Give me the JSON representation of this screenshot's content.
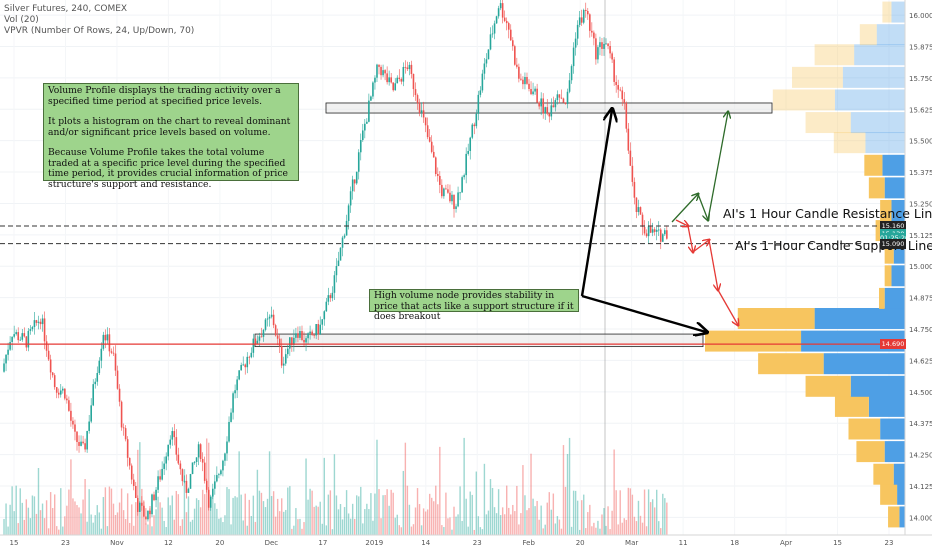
{
  "header": {
    "title": "Silver Futures, 240, COMEX",
    "indicator_vol": "Vol (20)",
    "indicator_vpvr": "VPVR (Number Of Rows, 24, Up/Down, 70)"
  },
  "annotations": {
    "volume_profile_note": [
      "Volume Profile displays the trading activity over a specified time period at specified price levels.",
      "It plots a histogram on the chart to reveal dominant and/or significant price levels based on volume.",
      "Because Volume Profile takes the total volume traded at a specific price level during the specified time period, it provides crucial information of price structure's support and resistance."
    ],
    "high_volume_note": "High volume node provides stability in price that acts like a support structure if it does breakout",
    "resistance_label": "AI's 1 Hour Candle Resistance Line",
    "support_label": "AI's 1 Hour Candle Support Line"
  },
  "price_tags": [
    {
      "label": "15.160",
      "value": 15.16,
      "color": "#222222"
    },
    {
      "label": "15.130",
      "value": 15.13,
      "color": "#26a69a"
    },
    {
      "label": "01:25:20",
      "value": 15.112,
      "color": "#26a69a"
    },
    {
      "label": "15.090",
      "value": 15.09,
      "color": "#222222"
    },
    {
      "label": "14.690",
      "value": 14.69,
      "color": "#e53935"
    }
  ],
  "colors": {
    "up_candle": "#26a69a",
    "down_candle": "#ef5350",
    "vp_up": "#4e9fe5",
    "vp_down": "#f7c55f",
    "support_line": "#e53935",
    "note_bg": "#9ed48c",
    "green_arrow": "#2e6b2a",
    "red_arrow": "#e53935"
  },
  "chart_data": {
    "type": "candlestick",
    "title": "Silver Futures, 240, COMEX",
    "y_axis": {
      "min": 13.93,
      "max": 16.06,
      "ticks": [
        16.0,
        15.875,
        15.75,
        15.625,
        15.5,
        15.375,
        15.25,
        15.125,
        15.0,
        14.875,
        14.75,
        14.625,
        14.5,
        14.375,
        14.25,
        14.125,
        14.0
      ],
      "tick_labels": [
        "16.000",
        "15.875",
        "15.750",
        "15.625",
        "15.500",
        "15.375",
        "15.250",
        "15.125",
        "15.000",
        "14.875",
        "14.750",
        "14.625",
        "14.500",
        "14.375",
        "14.250",
        "14.125",
        "14.000"
      ]
    },
    "x_axis": {
      "labels": [
        "15",
        "23",
        "Nov",
        "12",
        "20",
        "Dec",
        "17",
        "2019",
        "14",
        "23",
        "Feb",
        "20",
        "Mar",
        "11",
        "18",
        "Apr",
        "15",
        "23"
      ]
    },
    "price_path": [
      {
        "t": 0,
        "p": 14.58
      },
      {
        "t": 2,
        "p": 14.74
      },
      {
        "t": 5,
        "p": 14.7
      },
      {
        "t": 8,
        "p": 14.8
      },
      {
        "t": 11,
        "p": 14.52
      },
      {
        "t": 13,
        "p": 14.5
      },
      {
        "t": 15,
        "p": 14.32
      },
      {
        "t": 17,
        "p": 14.26
      },
      {
        "t": 19,
        "p": 14.52
      },
      {
        "t": 21,
        "p": 14.74
      },
      {
        "t": 23,
        "p": 14.65
      },
      {
        "t": 25,
        "p": 14.35
      },
      {
        "t": 28,
        "p": 14.05
      },
      {
        "t": 30,
        "p": 14.0
      },
      {
        "t": 33,
        "p": 14.18
      },
      {
        "t": 35,
        "p": 14.35
      },
      {
        "t": 38,
        "p": 14.1
      },
      {
        "t": 41,
        "p": 14.28
      },
      {
        "t": 43,
        "p": 14.05
      },
      {
        "t": 46,
        "p": 14.25
      },
      {
        "t": 48,
        "p": 14.5
      },
      {
        "t": 51,
        "p": 14.65
      },
      {
        "t": 53,
        "p": 14.72
      },
      {
        "t": 56,
        "p": 14.8
      },
      {
        "t": 58,
        "p": 14.62
      },
      {
        "t": 61,
        "p": 14.75
      },
      {
        "t": 63,
        "p": 14.7
      },
      {
        "t": 66,
        "p": 14.76
      },
      {
        "t": 69,
        "p": 14.95
      },
      {
        "t": 72,
        "p": 15.25
      },
      {
        "t": 75,
        "p": 15.55
      },
      {
        "t": 78,
        "p": 15.8
      },
      {
        "t": 81,
        "p": 15.7
      },
      {
        "t": 84,
        "p": 15.8
      },
      {
        "t": 86,
        "p": 15.68
      },
      {
        "t": 89,
        "p": 15.45
      },
      {
        "t": 91,
        "p": 15.3
      },
      {
        "t": 94,
        "p": 15.25
      },
      {
        "t": 96,
        "p": 15.4
      },
      {
        "t": 98,
        "p": 15.6
      },
      {
        "t": 100,
        "p": 15.8
      },
      {
        "t": 103,
        "p": 16.05
      },
      {
        "t": 105,
        "p": 15.95
      },
      {
        "t": 107,
        "p": 15.75
      },
      {
        "t": 110,
        "p": 15.7
      },
      {
        "t": 113,
        "p": 15.6
      },
      {
        "t": 115,
        "p": 15.7
      },
      {
        "t": 117,
        "p": 15.65
      },
      {
        "t": 119,
        "p": 15.95
      },
      {
        "t": 121,
        "p": 16.02
      },
      {
        "t": 123,
        "p": 15.85
      },
      {
        "t": 125,
        "p": 15.9
      },
      {
        "t": 127,
        "p": 15.75
      },
      {
        "t": 129,
        "p": 15.62
      },
      {
        "t": 131,
        "p": 15.25
      },
      {
        "t": 133,
        "p": 15.15
      },
      {
        "t": 136,
        "p": 15.12
      },
      {
        "t": 138,
        "p": 15.14
      }
    ],
    "volume_profile": {
      "bin_size": 0.0875,
      "bins": [
        {
          "price": 14.0,
          "up": 5,
          "down": 10
        },
        {
          "price": 14.09,
          "up": 7,
          "down": 15
        },
        {
          "price": 14.17,
          "up": 10,
          "down": 18
        },
        {
          "price": 14.26,
          "up": 18,
          "down": 25
        },
        {
          "price": 14.35,
          "up": 22,
          "down": 28
        },
        {
          "price": 14.44,
          "up": 32,
          "down": 30
        },
        {
          "price": 14.52,
          "up": 48,
          "down": 40
        },
        {
          "price": 14.61,
          "up": 72,
          "down": 58
        },
        {
          "price": 14.7,
          "up": 92,
          "down": 85
        },
        {
          "price": 14.79,
          "up": 80,
          "down": 68
        },
        {
          "price": 14.87,
          "up": 18,
          "down": 5
        },
        {
          "price": 14.96,
          "up": 12,
          "down": 6
        },
        {
          "price": 15.05,
          "up": 10,
          "down": 8
        },
        {
          "price": 15.14,
          "up": 14,
          "down": 12
        },
        {
          "price": 15.22,
          "up": 12,
          "down": 10
        },
        {
          "price": 15.31,
          "up": 18,
          "down": 14
        },
        {
          "price": 15.4,
          "up": 20,
          "down": 16
        },
        {
          "price": 15.49,
          "up": 35,
          "down": 28
        },
        {
          "price": 15.57,
          "up": 48,
          "down": 40
        },
        {
          "price": 15.66,
          "up": 62,
          "down": 55
        },
        {
          "price": 15.75,
          "up": 55,
          "down": 45
        },
        {
          "price": 15.84,
          "up": 45,
          "down": 35
        },
        {
          "price": 15.92,
          "up": 25,
          "down": 15
        },
        {
          "price": 16.01,
          "up": 12,
          "down": 8
        }
      ]
    },
    "levels": {
      "resistance": 15.16,
      "support": 15.09,
      "high_volume_node": 14.69,
      "zone_upper": [
        15.61,
        15.65
      ],
      "zone_lower": [
        14.68,
        14.73
      ]
    }
  }
}
